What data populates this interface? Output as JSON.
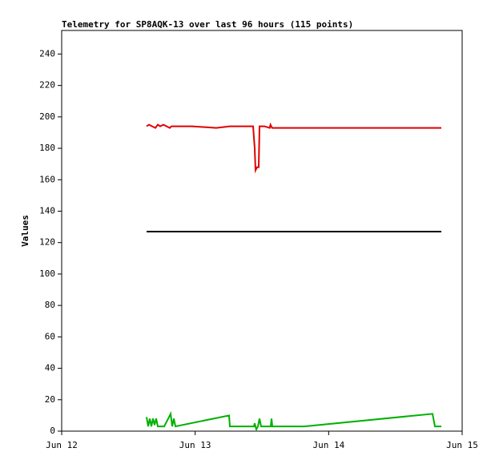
{
  "chart_data": {
    "type": "line",
    "title": "Telemetry for SP8AQK-13 over last 96 hours (115 points)",
    "y_label": "Values",
    "xlim": [
      12,
      15
    ],
    "xticks": [
      {
        "value": 12,
        "label": "Jun 12"
      },
      {
        "value": 13,
        "label": "Jun 13"
      },
      {
        "value": 14,
        "label": "Jun 14"
      },
      {
        "value": 15,
        "label": "Jun 15"
      }
    ],
    "ylim": [
      0,
      255
    ],
    "yticks": [
      0,
      20,
      40,
      60,
      80,
      100,
      120,
      140,
      160,
      180,
      200,
      220,
      240
    ],
    "grid": false,
    "series": [
      {
        "color": "#e00000",
        "x": [
          12.636,
          12.654,
          12.678,
          12.702,
          12.72,
          12.738,
          12.762,
          12.786,
          12.81,
          12.822,
          12.978,
          13.158,
          13.26,
          13.434,
          13.446,
          13.452,
          13.464,
          13.476,
          13.482,
          13.518,
          13.558,
          13.564,
          13.576,
          14.844
        ],
        "values": [
          194,
          195,
          194,
          193,
          195,
          194,
          195,
          194,
          193,
          194,
          194,
          193,
          194,
          194,
          180,
          166,
          168,
          168,
          194,
          194,
          193,
          195,
          193,
          193
        ]
      },
      {
        "color": "#000000",
        "x": [
          12.636,
          14.844
        ],
        "values": [
          127,
          127
        ]
      },
      {
        "color": "#00b000",
        "x": [
          12.636,
          12.648,
          12.66,
          12.672,
          12.684,
          12.696,
          12.708,
          12.72,
          12.768,
          12.804,
          12.816,
          12.828,
          12.84,
          12.852,
          13.254,
          13.26,
          13.44,
          13.446,
          13.458,
          13.47,
          13.482,
          13.494,
          13.566,
          13.572,
          13.578,
          13.818,
          14.778,
          14.796,
          14.844
        ],
        "values": [
          9,
          3,
          8,
          3,
          8,
          4,
          8,
          3,
          3,
          9,
          11,
          3,
          8,
          3,
          10,
          3,
          3,
          5,
          1,
          3,
          8,
          3,
          3,
          8,
          3,
          3,
          11,
          3,
          3
        ]
      }
    ]
  }
}
